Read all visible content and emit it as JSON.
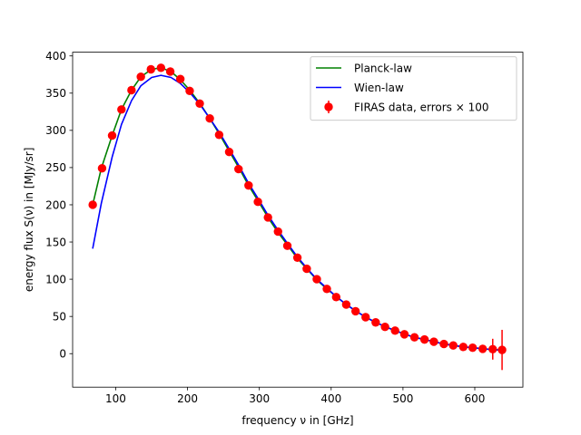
{
  "chart_data": {
    "type": "scatter",
    "title": "",
    "xlabel": "frequency ν in [GHz]",
    "ylabel": "energy flux S(ν) in [MJy/sr]",
    "xlim": [
      40,
      667
    ],
    "ylim": [
      -45,
      405
    ],
    "xticks": [
      100,
      200,
      300,
      400,
      500,
      600
    ],
    "yticks": [
      0,
      50,
      100,
      150,
      200,
      250,
      300,
      350,
      400
    ],
    "legend_placement": "top-right",
    "grid": false,
    "series": [
      {
        "name": "Planck-law",
        "kind": "line",
        "color": "#008000",
        "x": [
          68,
          80,
          95,
          108,
          122,
          135,
          150,
          163,
          177,
          190,
          204,
          218,
          231,
          245,
          258,
          272,
          285,
          299,
          312,
          326,
          340,
          353,
          367,
          380,
          394,
          408,
          421,
          435,
          448,
          462,
          476,
          489,
          503,
          516,
          530,
          544,
          557,
          571,
          584,
          598,
          612,
          625,
          639
        ],
        "y": [
          200,
          249,
          293,
          328,
          354,
          372,
          382,
          384,
          379,
          368,
          353,
          335,
          316,
          294,
          272,
          249,
          226,
          204,
          183,
          163,
          145,
          128,
          113,
          99,
          87,
          76,
          66,
          57,
          49,
          42,
          36,
          31,
          26,
          22,
          19,
          16,
          13,
          11,
          9,
          8,
          6.5,
          5.5,
          4.5
        ]
      },
      {
        "name": "Wien-law",
        "kind": "line",
        "color": "#0000ff",
        "x": [
          68,
          80,
          95,
          108,
          122,
          135,
          150,
          163,
          177,
          190,
          204,
          218,
          231,
          245,
          258,
          272,
          285,
          299,
          312,
          326,
          340,
          353,
          367,
          380,
          394,
          408,
          421,
          435,
          448,
          462,
          476,
          489,
          503,
          516,
          530,
          544,
          557,
          571,
          584,
          598,
          612,
          625,
          639
        ],
        "y": [
          141,
          202,
          264,
          308,
          340,
          360,
          371,
          374,
          371,
          363,
          350,
          334,
          316,
          296,
          275,
          252,
          229,
          207,
          186,
          166,
          147,
          130,
          114,
          100,
          88,
          76,
          66,
          57,
          49,
          42,
          36,
          31,
          26,
          22,
          19,
          16,
          13,
          11,
          9,
          8,
          6.5,
          5.5,
          4.5
        ]
      },
      {
        "name": "FIRAS data, errors × 100",
        "kind": "errorbar",
        "color": "#ff0000",
        "x": [
          68,
          81,
          95,
          108,
          122,
          135,
          149,
          163,
          176,
          190,
          203,
          217,
          231,
          244,
          258,
          271,
          285,
          298,
          312,
          326,
          339,
          353,
          366,
          380,
          394,
          407,
          421,
          434,
          448,
          462,
          475,
          489,
          502,
          516,
          530,
          543,
          557,
          570,
          584,
          597,
          611,
          625,
          638
        ],
        "y": [
          200,
          249,
          293,
          328,
          354,
          372,
          382,
          384,
          379,
          369,
          353,
          336,
          316,
          294,
          271,
          248,
          226,
          204,
          183,
          164,
          145,
          129,
          114,
          100,
          87,
          76,
          66,
          57,
          49,
          42,
          36,
          31,
          26,
          22,
          19,
          16,
          13,
          11,
          9,
          8,
          6.5,
          6,
          5
        ],
        "err": [
          0,
          0,
          0,
          0,
          0,
          0,
          0,
          0,
          0,
          0,
          0,
          0,
          0,
          0,
          0,
          0,
          0,
          0,
          0,
          0,
          0,
          0,
          0,
          0,
          0,
          0,
          0,
          0,
          0,
          0,
          0,
          0,
          0,
          0,
          0,
          0,
          0,
          0,
          0,
          0,
          4,
          14,
          27
        ]
      }
    ]
  }
}
